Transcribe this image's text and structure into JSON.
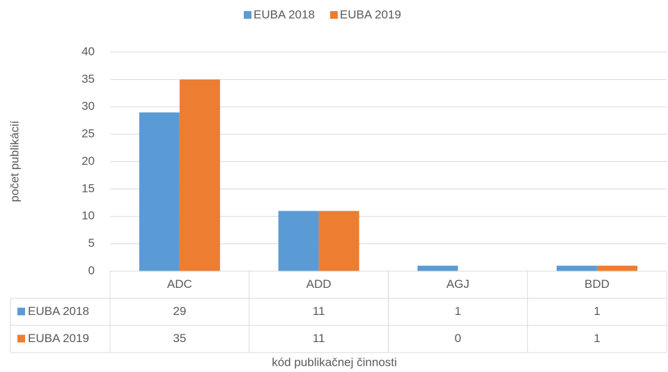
{
  "chart_data": {
    "type": "bar",
    "categories": [
      "ADC",
      "ADD",
      "AGJ",
      "BDD"
    ],
    "series": [
      {
        "name": "EUBA 2018",
        "color": "#5b9bd5",
        "values": [
          29,
          11,
          1,
          1
        ]
      },
      {
        "name": "EUBA 2019",
        "color": "#ed7d31",
        "values": [
          35,
          11,
          0,
          1
        ]
      }
    ],
    "x_label": "kód publikačnej činnosti",
    "y_label": "počet publikácií",
    "ylim": [
      0,
      40
    ],
    "yticks": [
      0,
      5,
      10,
      15,
      20,
      25,
      30,
      35,
      40
    ],
    "grid": true,
    "legend": "top",
    "data_table": true
  }
}
